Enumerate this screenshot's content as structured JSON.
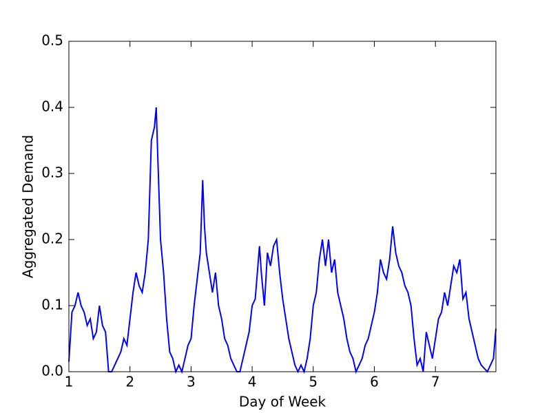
{
  "chart_data": {
    "type": "line",
    "xlabel": "Day of Week",
    "ylabel": "Aggregated Demand",
    "color": "#0000ff",
    "x": [
      1.0,
      1.05,
      1.1,
      1.15,
      1.2,
      1.25,
      1.3,
      1.35,
      1.4,
      1.45,
      1.5,
      1.55,
      1.6,
      1.65,
      1.7,
      1.75,
      1.8,
      1.85,
      1.9,
      1.95,
      2.0,
      2.05,
      2.1,
      2.15,
      2.2,
      2.25,
      2.3,
      2.35,
      2.4,
      2.43,
      2.45,
      2.5,
      2.55,
      2.6,
      2.65,
      2.7,
      2.75,
      2.8,
      2.85,
      2.9,
      2.95,
      3.0,
      3.05,
      3.1,
      3.15,
      3.19,
      3.22,
      3.25,
      3.3,
      3.35,
      3.4,
      3.45,
      3.5,
      3.55,
      3.6,
      3.65,
      3.7,
      3.75,
      3.8,
      3.85,
      3.9,
      3.95,
      4.0,
      4.05,
      4.12,
      4.15,
      4.2,
      4.25,
      4.3,
      4.35,
      4.4,
      4.45,
      4.5,
      4.55,
      4.6,
      4.65,
      4.7,
      4.75,
      4.8,
      4.85,
      4.9,
      4.95,
      5.0,
      5.05,
      5.1,
      5.15,
      5.2,
      5.25,
      5.3,
      5.35,
      5.4,
      5.45,
      5.5,
      5.55,
      5.6,
      5.65,
      5.7,
      5.75,
      5.8,
      5.85,
      5.9,
      5.95,
      6.0,
      6.05,
      6.1,
      6.15,
      6.2,
      6.25,
      6.3,
      6.35,
      6.4,
      6.45,
      6.5,
      6.55,
      6.6,
      6.65,
      6.7,
      6.75,
      6.8,
      6.85,
      6.9,
      6.95,
      7.0,
      7.05,
      7.1,
      7.15,
      7.2,
      7.25,
      7.3,
      7.35,
      7.4,
      7.45,
      7.5,
      7.55,
      7.6,
      7.65,
      7.7,
      7.75,
      7.8,
      7.85,
      7.9,
      7.95,
      7.99
    ],
    "values": [
      0.015,
      0.09,
      0.1,
      0.12,
      0.1,
      0.09,
      0.07,
      0.08,
      0.05,
      0.06,
      0.1,
      0.07,
      0.06,
      0.0,
      0.0,
      0.01,
      0.02,
      0.03,
      0.05,
      0.04,
      0.08,
      0.12,
      0.15,
      0.13,
      0.12,
      0.15,
      0.2,
      0.35,
      0.37,
      0.4,
      0.34,
      0.2,
      0.15,
      0.08,
      0.03,
      0.02,
      0.0,
      0.01,
      0.0,
      0.02,
      0.04,
      0.05,
      0.1,
      0.14,
      0.18,
      0.29,
      0.22,
      0.18,
      0.15,
      0.12,
      0.15,
      0.1,
      0.08,
      0.05,
      0.04,
      0.02,
      0.01,
      0.0,
      0.0,
      0.02,
      0.04,
      0.06,
      0.1,
      0.11,
      0.19,
      0.15,
      0.1,
      0.18,
      0.16,
      0.19,
      0.2,
      0.15,
      0.11,
      0.08,
      0.05,
      0.03,
      0.01,
      0.0,
      0.01,
      0.0,
      0.02,
      0.05,
      0.1,
      0.12,
      0.17,
      0.2,
      0.16,
      0.2,
      0.15,
      0.17,
      0.12,
      0.1,
      0.08,
      0.05,
      0.03,
      0.02,
      0.0,
      0.01,
      0.02,
      0.04,
      0.05,
      0.07,
      0.09,
      0.12,
      0.17,
      0.15,
      0.14,
      0.17,
      0.22,
      0.18,
      0.16,
      0.15,
      0.13,
      0.12,
      0.1,
      0.05,
      0.01,
      0.02,
      0.0,
      0.06,
      0.04,
      0.02,
      0.05,
      0.08,
      0.09,
      0.12,
      0.1,
      0.13,
      0.16,
      0.15,
      0.17,
      0.11,
      0.12,
      0.08,
      0.06,
      0.04,
      0.02,
      0.01,
      0.005,
      0.0,
      0.01,
      0.02,
      0.065
    ],
    "xlim": [
      1,
      7.99
    ],
    "xticks": [
      1,
      2,
      3,
      4,
      5,
      6,
      7
    ],
    "ylim": [
      0,
      0.5
    ],
    "yticks": [
      {
        "value": 0,
        "label": "0.0"
      },
      0.1,
      0.2,
      0.3,
      0.4,
      0.5
    ]
  }
}
